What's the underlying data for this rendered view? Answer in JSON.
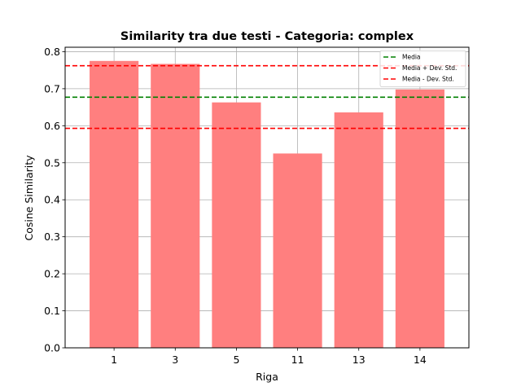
{
  "chart_data": {
    "type": "bar",
    "title": "Similarity tra due testi - Categoria: complex",
    "xlabel": "Riga",
    "ylabel": "Cosine Similarity",
    "categories": [
      "1",
      "3",
      "5",
      "11",
      "13",
      "14"
    ],
    "values": [
      0.775,
      0.767,
      0.663,
      0.525,
      0.636,
      0.698
    ],
    "ylim": [
      0,
      0.812
    ],
    "yticks": [
      "0.0",
      "0.1",
      "0.2",
      "0.3",
      "0.4",
      "0.5",
      "0.6",
      "0.7",
      "0.8"
    ],
    "grid": true,
    "bar_color": "#ff7f7f",
    "lines": [
      {
        "name": "Media",
        "value": 0.677,
        "color": "#008000",
        "style": "dashed"
      },
      {
        "name": "Media + Dev. Std.",
        "value": 0.762,
        "color": "#ff0000",
        "style": "dashed"
      },
      {
        "name": "Media - Dev. Std.",
        "value": 0.593,
        "color": "#ff0000",
        "style": "dashed"
      }
    ],
    "legend_position": "top-right"
  }
}
